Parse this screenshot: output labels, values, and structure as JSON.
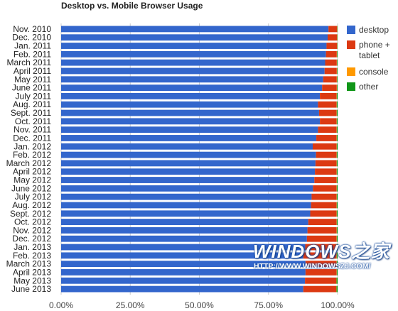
{
  "chart_data": {
    "type": "bar",
    "orientation": "horizontal",
    "stacked": true,
    "title": "Desktop vs. Mobile Browser Usage",
    "categories": [
      "Nov. 2010",
      "Dec. 2010",
      "Jan. 2011",
      "Feb. 2011",
      "March 2011",
      "April 2011",
      "May 2011",
      "June 2011",
      "July 2011",
      "Aug. 2011",
      "Sept. 2011",
      "Oct. 2011",
      "Nov. 2011",
      "Dec. 2011",
      "Jan. 2012",
      "Feb. 2012",
      "March 2012",
      "April 2012",
      "May 2012",
      "June 2012",
      "July 2012",
      "Aug. 2012",
      "Sept. 2012",
      "Oct. 2012",
      "Nov. 2012",
      "Dec. 2012",
      "Jan. 2013",
      "Feb. 2013",
      "March 2013",
      "April 2013",
      "May 2013",
      "June 2013"
    ],
    "series": [
      {
        "name": "desktop",
        "color": "#3366cc",
        "values": [
          96.7,
          96.4,
          96.0,
          95.8,
          95.5,
          95.3,
          94.8,
          94.4,
          93.6,
          92.9,
          93.3,
          93.6,
          92.9,
          92.3,
          91.0,
          92.2,
          92.0,
          91.8,
          91.6,
          91.1,
          90.6,
          90.4,
          90.1,
          89.4,
          89.1,
          88.9,
          88.3,
          87.6,
          88.4,
          88.4,
          88.2,
          87.6
        ]
      },
      {
        "name": "phone + tablet",
        "color": "#dc3912",
        "values": [
          3.1,
          3.4,
          3.8,
          3.9,
          4.2,
          4.4,
          4.9,
          5.3,
          6.0,
          6.7,
          6.3,
          6.0,
          6.7,
          7.3,
          8.6,
          7.4,
          7.6,
          7.8,
          8.0,
          8.5,
          9.0,
          9.2,
          9.5,
          10.2,
          10.5,
          10.7,
          11.3,
          12.0,
          11.2,
          11.2,
          11.3,
          11.9
        ]
      },
      {
        "name": "console",
        "color": "#ff9900",
        "values": [
          0.1,
          0.1,
          0.1,
          0.1,
          0.1,
          0.1,
          0.1,
          0.1,
          0.1,
          0.1,
          0.1,
          0.1,
          0.1,
          0.1,
          0.1,
          0.1,
          0.1,
          0.1,
          0.1,
          0.1,
          0.1,
          0.1,
          0.1,
          0.1,
          0.1,
          0.1,
          0.1,
          0.1,
          0.1,
          0.1,
          0.1,
          0.1
        ]
      },
      {
        "name": "other",
        "color": "#109618",
        "values": [
          0.1,
          0.1,
          0.1,
          0.2,
          0.2,
          0.2,
          0.2,
          0.2,
          0.3,
          0.3,
          0.3,
          0.3,
          0.3,
          0.3,
          0.3,
          0.3,
          0.3,
          0.3,
          0.3,
          0.3,
          0.3,
          0.3,
          0.3,
          0.3,
          0.3,
          0.3,
          0.3,
          0.3,
          0.3,
          0.3,
          0.4,
          0.4
        ]
      }
    ],
    "x_tick_labels": [
      "0.00%",
      "25.00%",
      "50.00%",
      "75.00%",
      "100.00%"
    ],
    "xlim": [
      0,
      100
    ],
    "legend_position": "right",
    "grid": true
  },
  "watermark": {
    "logo_text": "WINDOWS之家",
    "url_text": "HTTP://WWW.WINDOWSZJ.COM/"
  }
}
